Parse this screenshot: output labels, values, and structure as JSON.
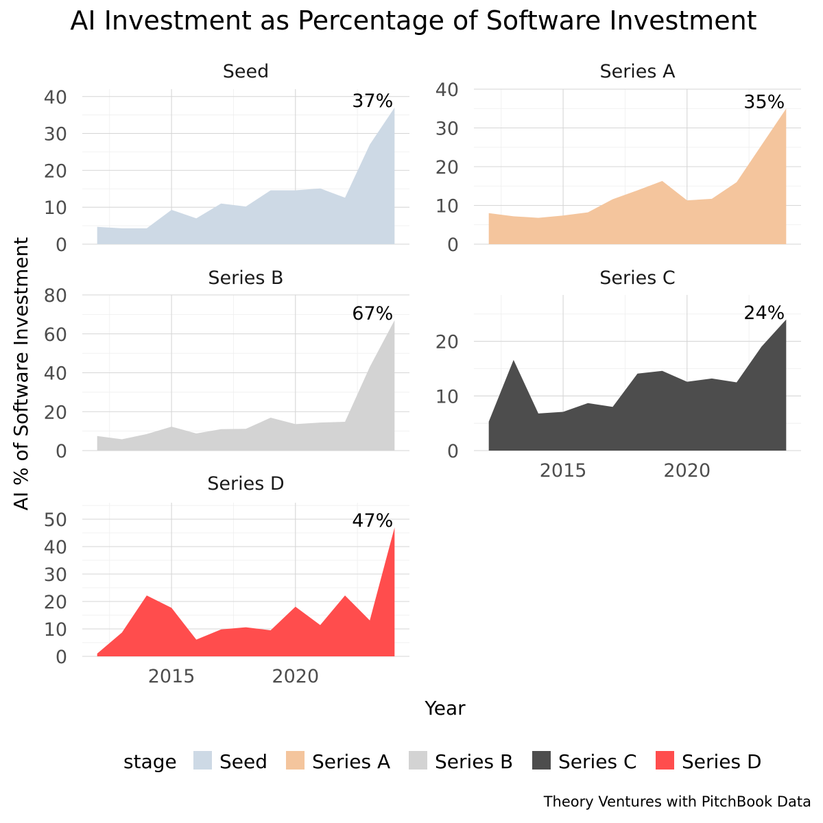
{
  "chart_data": {
    "type": "area",
    "title": "AI Investment as Percentage of Software Investment",
    "xlabel": "Year",
    "ylabel": "AI % of Software Investment",
    "caption": "Theory Ventures with PitchBook Data",
    "legend": {
      "title": "stage",
      "placement": "bottom",
      "entries": [
        "Seed",
        "Series A",
        "Series B",
        "Series C",
        "Series D"
      ]
    },
    "x_ticks": [
      "2015",
      "2020"
    ],
    "x": [
      2012,
      2013,
      2014,
      2015,
      2016,
      2017,
      2018,
      2019,
      2020,
      2021,
      2022,
      2023,
      2024
    ],
    "grid": true,
    "colors": {
      "Seed": "#cdd9e5",
      "Series A": "#f4c59d",
      "Series B": "#d3d3d3",
      "Series C": "#4d4d4d",
      "Series D": "#ff4d4d"
    },
    "facets": [
      {
        "name": "Seed",
        "values": [
          4.7,
          4.3,
          4.3,
          9.3,
          7.0,
          11.0,
          10.2,
          14.6,
          14.6,
          15.1,
          12.6,
          27.0,
          37.0
        ],
        "ylim": [
          0,
          42
        ],
        "y_ticks": [
          "0",
          "10",
          "20",
          "30",
          "40"
        ],
        "end_label": "37%"
      },
      {
        "name": "Series A",
        "values": [
          8.0,
          7.2,
          6.8,
          7.4,
          8.2,
          11.6,
          13.9,
          16.3,
          11.3,
          11.7,
          16.0,
          25.5,
          35.0
        ],
        "ylim": [
          0,
          40
        ],
        "y_ticks": [
          "0",
          "10",
          "20",
          "30",
          "40"
        ],
        "end_label": "35%"
      },
      {
        "name": "Series B",
        "values": [
          7.5,
          5.8,
          8.5,
          12.3,
          8.8,
          11.0,
          11.2,
          16.9,
          13.6,
          14.4,
          14.8,
          43.0,
          67.0
        ],
        "ylim": [
          0,
          80
        ],
        "y_ticks": [
          "0",
          "20",
          "40",
          "60",
          "80"
        ],
        "end_label": "67%"
      },
      {
        "name": "Series C",
        "values": [
          5.3,
          16.6,
          6.8,
          7.1,
          8.7,
          8.0,
          14.1,
          14.6,
          12.6,
          13.2,
          12.5,
          19.0,
          24.0
        ],
        "ylim": [
          0,
          28.5
        ],
        "y_ticks": [
          "0",
          "10",
          "20"
        ],
        "end_label": "24%"
      },
      {
        "name": "Series D",
        "values": [
          1.0,
          8.7,
          22.2,
          17.7,
          6.1,
          9.8,
          10.6,
          9.5,
          18.1,
          11.4,
          22.2,
          13.1,
          47.0
        ],
        "ylim": [
          0,
          56
        ],
        "y_ticks": [
          "0",
          "10",
          "20",
          "30",
          "40",
          "50"
        ],
        "end_label": "47%"
      }
    ]
  }
}
